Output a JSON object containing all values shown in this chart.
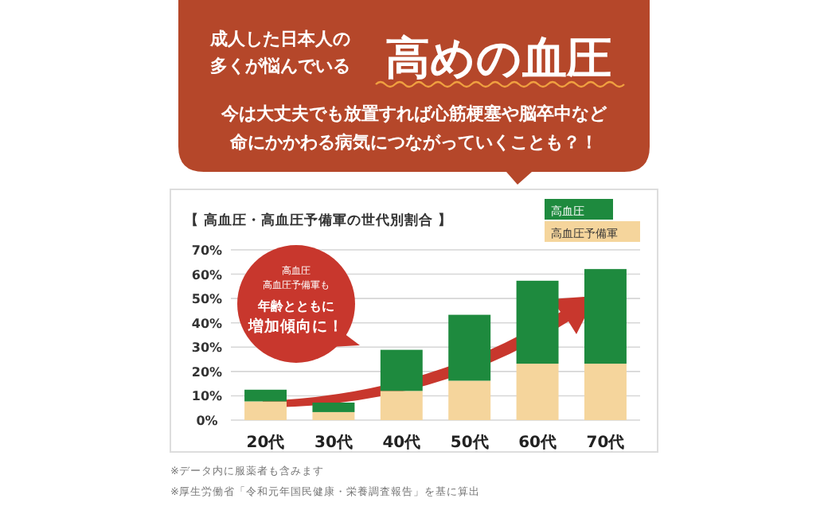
{
  "chart_data": {
    "type": "bar",
    "stacked": true,
    "title": "【 高血圧・高血圧予備軍の世代別割合 】",
    "categories": [
      "20代",
      "30代",
      "40代",
      "50代",
      "60代",
      "70代"
    ],
    "series": [
      {
        "name": "高血圧予備軍",
        "color": "#f5d59c",
        "values": [
          7.7,
          3.3,
          12,
          16.2,
          23.2,
          23.2
        ]
      },
      {
        "name": "高血圧",
        "color": "#1e8a3e",
        "values": [
          4.8,
          3.9,
          16.9,
          27.1,
          34.1,
          38.9
        ]
      }
    ],
    "ylim": [
      0,
      70
    ],
    "yticks": [
      {
        "value": 0,
        "label": "0%"
      },
      {
        "value": 10,
        "label": "10%"
      },
      {
        "value": 20,
        "label": "20%"
      },
      {
        "value": 30,
        "label": "30%"
      },
      {
        "value": 40,
        "label": "40%"
      },
      {
        "value": 50,
        "label": "50%"
      },
      {
        "value": 60,
        "label": "60%"
      },
      {
        "value": 70,
        "label": "70%"
      }
    ],
    "grid": "y",
    "legend": "top right",
    "annotations": [
      "成人した日本人の",
      "多くが悩んでいる",
      "高めの血圧",
      "今は大丈夫でも放置すれば心筋梗塞や脳卒中など",
      "命にかかわる病気につながっていくことも？！",
      "高血圧",
      "高血圧予備軍も",
      "年齢とともに",
      "増加傾向に！",
      "※データ内に服薬者も含みます",
      "※厚生労働省「令和元年国民健康・栄養調査報告」を基に算出"
    ]
  }
}
